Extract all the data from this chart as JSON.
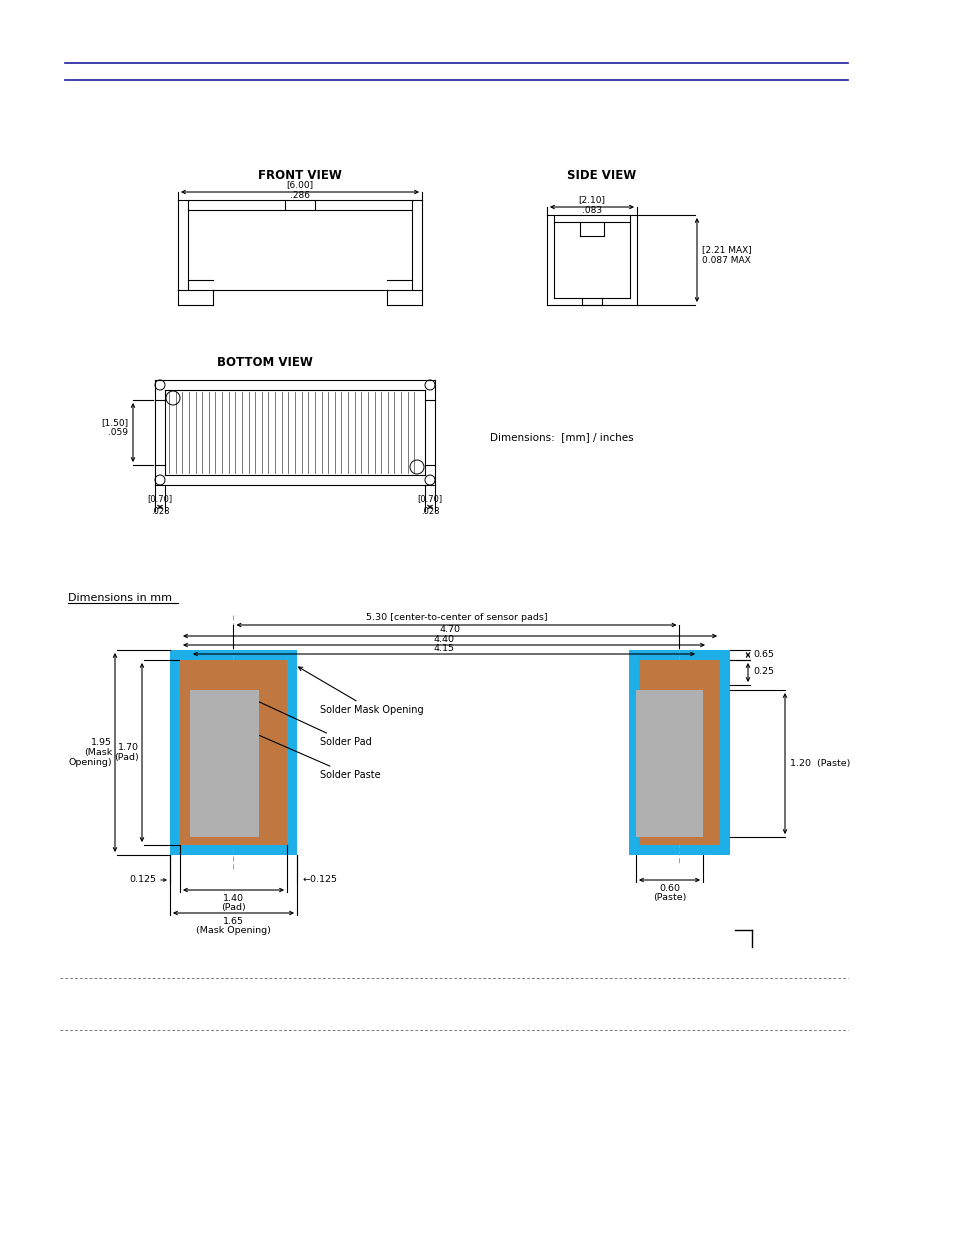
{
  "bg_color": "#ffffff",
  "line_color": "#000000",
  "blue_line_color": "#1F1FA0",
  "cyan_pad_color": "#1EAEE8",
  "brown_copper_color": "#C07840",
  "gray_paste_color": "#B0B0B0",
  "page_width": 9.54,
  "page_height": 12.35,
  "front_view_label": "FRONT VIEW",
  "side_view_label": "SIDE VIEW",
  "bottom_view_label": "BOTTOM VIEW",
  "dim_label": "Dimensions:  [mm] / inches",
  "dim_mm_label": "Dimensions in mm",
  "solder_mask_label": "Solder Mask Opening",
  "solder_pad_label": "Solder Pad",
  "solder_paste_label": "Solder Paste"
}
